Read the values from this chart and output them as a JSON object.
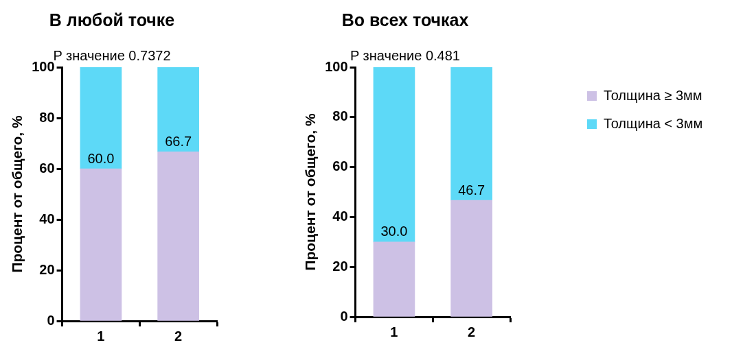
{
  "chart_data": [
    {
      "type": "bar",
      "title": "В любой точке",
      "annotations": [
        "P значение 0.7372"
      ],
      "ylabel": "Процент от общего, %",
      "categories": [
        "1",
        "2"
      ],
      "stacked": true,
      "ylim": [
        0,
        100
      ],
      "yticks": [
        0,
        20,
        40,
        60,
        80,
        100
      ],
      "grid": false,
      "series": [
        {
          "color": "#cdc1e5",
          "values": [
            60.0,
            66.7
          ],
          "value_labels": [
            "60.0",
            "66.7"
          ]
        },
        {
          "color": "#5dd9f7",
          "values": [
            40.0,
            33.3
          ]
        }
      ]
    },
    {
      "type": "bar",
      "title": "Во всех точках",
      "annotations": [
        "P значение 0.481"
      ],
      "ylabel": "Процент от общего, %",
      "categories": [
        "1",
        "2"
      ],
      "stacked": true,
      "ylim": [
        0,
        100
      ],
      "yticks": [
        0,
        20,
        40,
        60,
        80,
        100
      ],
      "grid": false,
      "legend": "right",
      "series": [
        {
          "name": "Толщина ≥ 3мм",
          "color": "#cdc1e5",
          "values": [
            30.0,
            46.7
          ],
          "value_labels": [
            "30.0",
            "46.7"
          ]
        },
        {
          "name": "Толщина < 3мм",
          "color": "#5dd9f7",
          "values": [
            70.0,
            53.3
          ]
        }
      ]
    }
  ]
}
